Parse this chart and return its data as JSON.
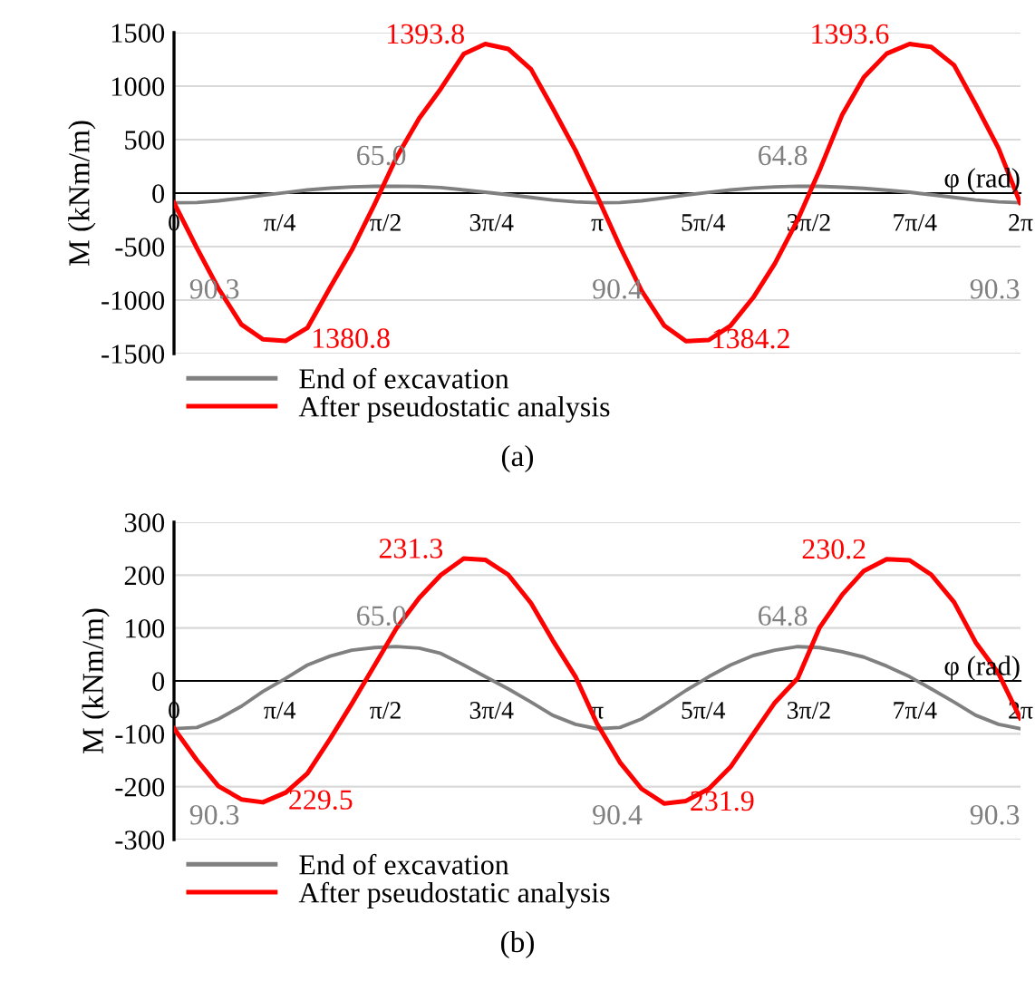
{
  "chart_data": [
    {
      "type": "line",
      "ylabel": "M (kNm/m)",
      "xlabel": "φ (rad)",
      "x": [
        0,
        0.17,
        0.33,
        0.5,
        0.66,
        0.83,
        0.99,
        1.16,
        1.32,
        1.49,
        1.65,
        1.82,
        1.98,
        2.15,
        2.31,
        2.48,
        2.65,
        2.81,
        2.98,
        3.14,
        3.31,
        3.47,
        3.64,
        3.8,
        3.97,
        4.13,
        4.3,
        4.46,
        4.63,
        4.79,
        4.96,
        5.12,
        5.29,
        5.46,
        5.62,
        5.79,
        5.95,
        6.12,
        6.28
      ],
      "series": [
        {
          "name": "End of excavation",
          "color": "#808080",
          "values": [
            -90.3,
            -88,
            -72,
            -48,
            -20,
            5,
            30,
            47,
            58,
            63,
            65.0,
            62,
            52,
            30,
            8,
            -15,
            -40,
            -65,
            -82,
            -90.4,
            -88,
            -72,
            -45,
            -18,
            8,
            30,
            48,
            58,
            64.8,
            63,
            55,
            45,
            28,
            8,
            -15,
            -40,
            -65,
            -82,
            -90.3
          ]
        },
        {
          "name": "After pseudostatic analysis",
          "color": "#ff0000",
          "values": [
            -90,
            -513,
            -892,
            -1228,
            -1367,
            -1380.8,
            -1260,
            -880,
            -532,
            -100,
            330,
            700,
            975,
            1300,
            1393.8,
            1348,
            1158,
            797,
            399,
            -25,
            -500,
            -911,
            -1240,
            -1384.2,
            -1373,
            -1240,
            -975,
            -658,
            -247,
            209,
            734,
            1082,
            1304,
            1393.6,
            1367,
            1196,
            829,
            418,
            -90
          ]
        }
      ],
      "ylim": [
        -1500,
        1500
      ],
      "yticks": [
        -1500,
        -1000,
        -500,
        0,
        500,
        1000,
        1500
      ],
      "xlim": [
        0,
        6.283
      ],
      "xticks": [
        {
          "value": 0,
          "label": "0"
        },
        {
          "value": 0.785,
          "label": "π/4"
        },
        {
          "value": 1.571,
          "label": "π/2"
        },
        {
          "value": 2.356,
          "label": "3π/4"
        },
        {
          "value": 3.142,
          "label": "π"
        },
        {
          "value": 3.927,
          "label": "5π/4"
        },
        {
          "value": 4.712,
          "label": "3π/2"
        },
        {
          "value": 5.498,
          "label": "7π/4"
        },
        {
          "value": 6.283,
          "label": "2π"
        }
      ],
      "grid": "y",
      "legend": "bottom",
      "marker": "none",
      "line_style": "solid",
      "annotations": [
        {
          "text": "90.3",
          "x": 0,
          "y": -90.3
        },
        {
          "text": "65.0",
          "x": 1.65,
          "y": 65.0
        },
        {
          "text": "90.4",
          "x": 3.14,
          "y": -90.4
        },
        {
          "text": "64.8",
          "x": 4.63,
          "y": 64.8
        },
        {
          "text": "90.3",
          "x": 6.28,
          "y": -90.3
        },
        {
          "text": "1380.8",
          "x": 0.83,
          "y": -1380.8
        },
        {
          "text": "1393.8",
          "x": 2.31,
          "y": 1393.8
        },
        {
          "text": "1384.2",
          "x": 3.8,
          "y": -1384.2
        },
        {
          "text": "1393.6",
          "x": 5.46,
          "y": 1393.6
        },
        "(a)"
      ]
    },
    {
      "type": "line",
      "ylabel": "M (kNm/m)",
      "xlabel": "φ (rad)",
      "x": [
        0,
        0.17,
        0.33,
        0.5,
        0.66,
        0.83,
        0.99,
        1.16,
        1.32,
        1.49,
        1.65,
        1.82,
        1.98,
        2.15,
        2.31,
        2.48,
        2.65,
        2.81,
        2.98,
        3.14,
        3.31,
        3.47,
        3.64,
        3.8,
        3.97,
        4.13,
        4.3,
        4.46,
        4.63,
        4.79,
        4.96,
        5.12,
        5.29,
        5.46,
        5.62,
        5.79,
        5.95,
        6.12,
        6.28
      ],
      "series": [
        {
          "name": "End of excavation",
          "color": "#808080",
          "values": [
            -90.3,
            -88,
            -72,
            -48,
            -20,
            5,
            30,
            47,
            58,
            63,
            65.0,
            62,
            52,
            30,
            8,
            -15,
            -40,
            -65,
            -82,
            -90.4,
            -88,
            -72,
            -45,
            -18,
            8,
            30,
            48,
            58,
            64.8,
            63,
            55,
            45,
            28,
            8,
            -15,
            -40,
            -65,
            -82,
            -90.3
          ]
        },
        {
          "name": "After pseudostatic analysis",
          "color": "#ff0000",
          "values": [
            -90,
            -150,
            -199,
            -224,
            -229.5,
            -211,
            -175,
            -109,
            -43,
            30,
            99,
            157,
            200,
            231.3,
            229,
            201,
            147,
            77,
            8,
            -81,
            -154,
            -204,
            -231.9,
            -227,
            -204,
            -163,
            -100,
            -41,
            5,
            100,
            163,
            208,
            230.2,
            228,
            201,
            149,
            73,
            14,
            -70
          ]
        }
      ],
      "ylim": [
        -300,
        300
      ],
      "yticks": [
        -300,
        -200,
        -100,
        0,
        100,
        200,
        300
      ],
      "xlim": [
        0,
        6.283
      ],
      "xticks": [
        {
          "value": 0,
          "label": "0"
        },
        {
          "value": 0.785,
          "label": "π/4"
        },
        {
          "value": 1.571,
          "label": "π/2"
        },
        {
          "value": 2.356,
          "label": "3π/4"
        },
        {
          "value": 3.142,
          "label": "π"
        },
        {
          "value": 3.927,
          "label": "5π/4"
        },
        {
          "value": 4.712,
          "label": "3π/2"
        },
        {
          "value": 5.498,
          "label": "7π/4"
        },
        {
          "value": 6.283,
          "label": "2π"
        }
      ],
      "grid": "y",
      "legend": "bottom",
      "marker": "none",
      "line_style": "solid",
      "annotations": [
        {
          "text": "90.3",
          "x": 0,
          "y": -90.3
        },
        {
          "text": "65.0",
          "x": 1.65,
          "y": 65.0
        },
        {
          "text": "90.4",
          "x": 3.14,
          "y": -90.4
        },
        {
          "text": "64.8",
          "x": 4.63,
          "y": 64.8
        },
        {
          "text": "90.3",
          "x": 6.28,
          "y": -90.3
        },
        {
          "text": "229.5",
          "x": 0.66,
          "y": -229.5
        },
        {
          "text": "231.3",
          "x": 2.15,
          "y": 231.3
        },
        {
          "text": "231.9",
          "x": 3.64,
          "y": -231.9
        },
        {
          "text": "230.2",
          "x": 5.29,
          "y": 230.2
        },
        "(b)"
      ]
    }
  ]
}
